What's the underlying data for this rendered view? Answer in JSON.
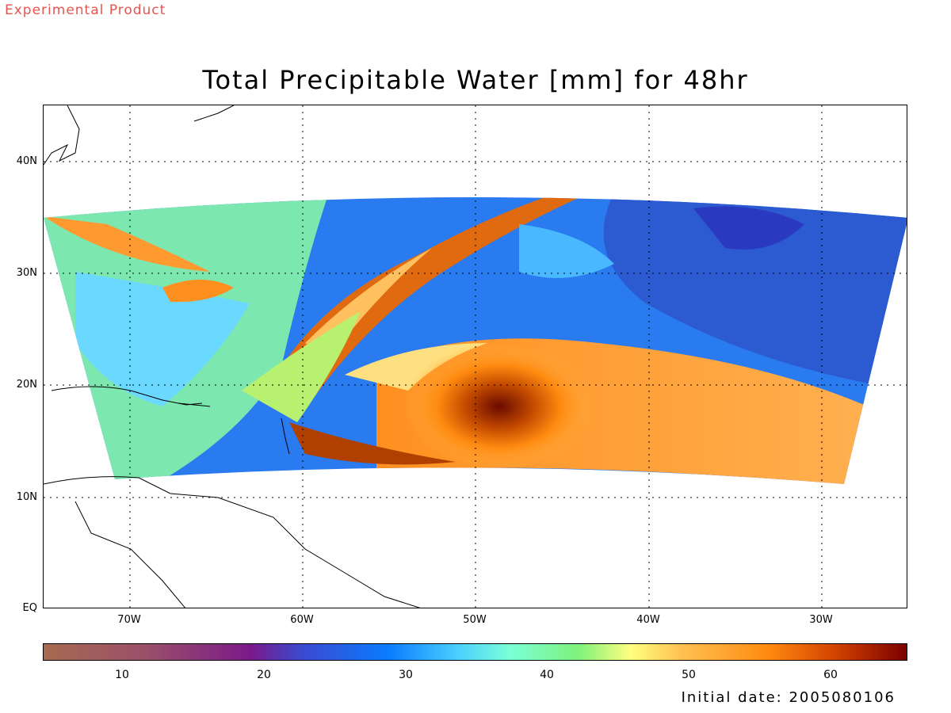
{
  "header": {
    "experimental": "Experimental Product"
  },
  "title": "Total Precipitable Water [mm] for 48hr",
  "map": {
    "lon_labels": [
      "70W",
      "60W",
      "50W",
      "40W",
      "30W"
    ],
    "lat_labels": [
      "40N",
      "30N",
      "20N",
      "10N",
      "EQ"
    ],
    "lon_range": [
      -75,
      -25
    ],
    "lat_range": [
      0,
      45
    ],
    "storm_center": {
      "lon": -48.5,
      "lat": 17.9
    }
  },
  "colorbar": {
    "ticks": [
      "10",
      "20",
      "30",
      "40",
      "50",
      "60"
    ],
    "range": [
      4.5,
      65.5
    ],
    "colors": [
      "#a86a50",
      "#7a1a8a",
      "#0a7cff",
      "#7affd8",
      "#ffff80",
      "#ff8a10",
      "#7a0000"
    ]
  },
  "footer": {
    "initial_date": "Initial date: 2005080106"
  }
}
